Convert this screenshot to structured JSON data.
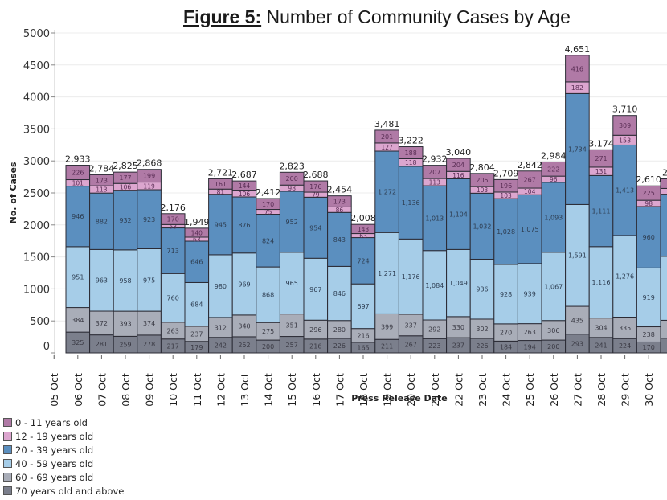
{
  "chart_data": {
    "type": "bar",
    "stacked": true,
    "title_prefix": "Figure 5:",
    "title": "Number of Community Cases by Age",
    "xlabel": "Press Release Date",
    "ylabel": "No. of Cases",
    "ylim": [
      0,
      5000
    ],
    "yticks": [
      0,
      500,
      1000,
      1500,
      2000,
      2500,
      3000,
      3500,
      4000,
      4500,
      5000
    ],
    "grid": true,
    "legend_position": "bottom-left",
    "categories": [
      "05 Oct",
      "06 Oct",
      "07 Oct",
      "08 Oct",
      "09 Oct",
      "10 Oct",
      "11 Oct",
      "12 Oct",
      "13 Oct",
      "14 Oct",
      "15 Oct",
      "16 Oct",
      "17 Oct",
      "18 Oct",
      "19 Oct",
      "20 Oct",
      "21 Oct",
      "22 Oct",
      "23 Oct",
      "24 Oct",
      "25 Oct",
      "26 Oct",
      "27 Oct",
      "28 Oct",
      "29 Oct",
      "30 Oct"
    ],
    "series": [
      {
        "name": "70 years old and above",
        "color": "#7b7f8c",
        "values": [
          null,
          325,
          281,
          259,
          278,
          217,
          179,
          242,
          252,
          200,
          257,
          216,
          226,
          165,
          211,
          267,
          223,
          237,
          226,
          184,
          194,
          200,
          293,
          241,
          224,
          170
        ]
      },
      {
        "name": "60 - 69 years old",
        "color": "#a9adb8",
        "values": [
          null,
          384,
          372,
          393,
          374,
          263,
          237,
          312,
          340,
          275,
          351,
          296,
          280,
          216,
          399,
          337,
          292,
          330,
          302,
          270,
          263,
          306,
          435,
          304,
          335,
          238
        ]
      },
      {
        "name": "40 - 59 years old",
        "color": "#a6cde8",
        "values": [
          null,
          951,
          963,
          958,
          975,
          760,
          684,
          980,
          969,
          868,
          965,
          967,
          846,
          697,
          1271,
          1176,
          1084,
          1049,
          936,
          928,
          939,
          1067,
          1591,
          1116,
          1276,
          919
        ]
      },
      {
        "name": "20 - 39 years old",
        "color": "#5b8fbf",
        "values": [
          null,
          946,
          882,
          932,
          923,
          713,
          646,
          945,
          876,
          824,
          952,
          954,
          843,
          724,
          1272,
          1136,
          1013,
          1104,
          1032,
          1028,
          1075,
          1093,
          1734,
          1111,
          1413,
          960
        ]
      },
      {
        "name": "12 - 19 years old",
        "color": "#dca6cf",
        "values": [
          null,
          101,
          113,
          106,
          119,
          53,
          63,
          81,
          106,
          75,
          98,
          79,
          86,
          63,
          127,
          118,
          113,
          116,
          103,
          103,
          104,
          96,
          182,
          131,
          153,
          98
        ]
      },
      {
        "name": "0 - 11 years old",
        "color": "#b07aa6",
        "values": [
          null,
          226,
          173,
          177,
          199,
          170,
          140,
          161,
          144,
          170,
          200,
          176,
          173,
          143,
          201,
          188,
          207,
          204,
          205,
          196,
          267,
          222,
          416,
          271,
          309,
          225
        ]
      }
    ],
    "totals": [
      null,
      2933,
      2784,
      2825,
      2868,
      2176,
      1949,
      2721,
      2687,
      2412,
      2823,
      2688,
      2454,
      2008,
      3481,
      3222,
      2932,
      3040,
      2804,
      2709,
      2842,
      2984,
      4651,
      3174,
      3710,
      2610
    ],
    "total_labels": [
      "",
      "2,933",
      "2,784",
      "2,825",
      "2,868",
      "2,176",
      "1,949",
      "2,721",
      "2,687",
      "2,412",
      "2,823",
      "2,688",
      "2,454",
      "2,008",
      "3,481",
      "3,222",
      "2,932",
      "3,040",
      "2,804",
      "2,709",
      "2,842",
      "2,984",
      "4,651",
      "3,174",
      "3,710",
      "2,610"
    ],
    "partial_next_bar_label": "2,",
    "legend": [
      {
        "label": "0 - 11 years old",
        "color": "#b07aa6"
      },
      {
        "label": "12 - 19 years old",
        "color": "#dca6cf"
      },
      {
        "label": "20 - 39 years old",
        "color": "#5b8fbf"
      },
      {
        "label": "40 - 59 years old",
        "color": "#a6cde8"
      },
      {
        "label": "60 - 69 years old",
        "color": "#a9adb8"
      },
      {
        "label": "70 years old and above",
        "color": "#7b7f8c"
      }
    ]
  }
}
